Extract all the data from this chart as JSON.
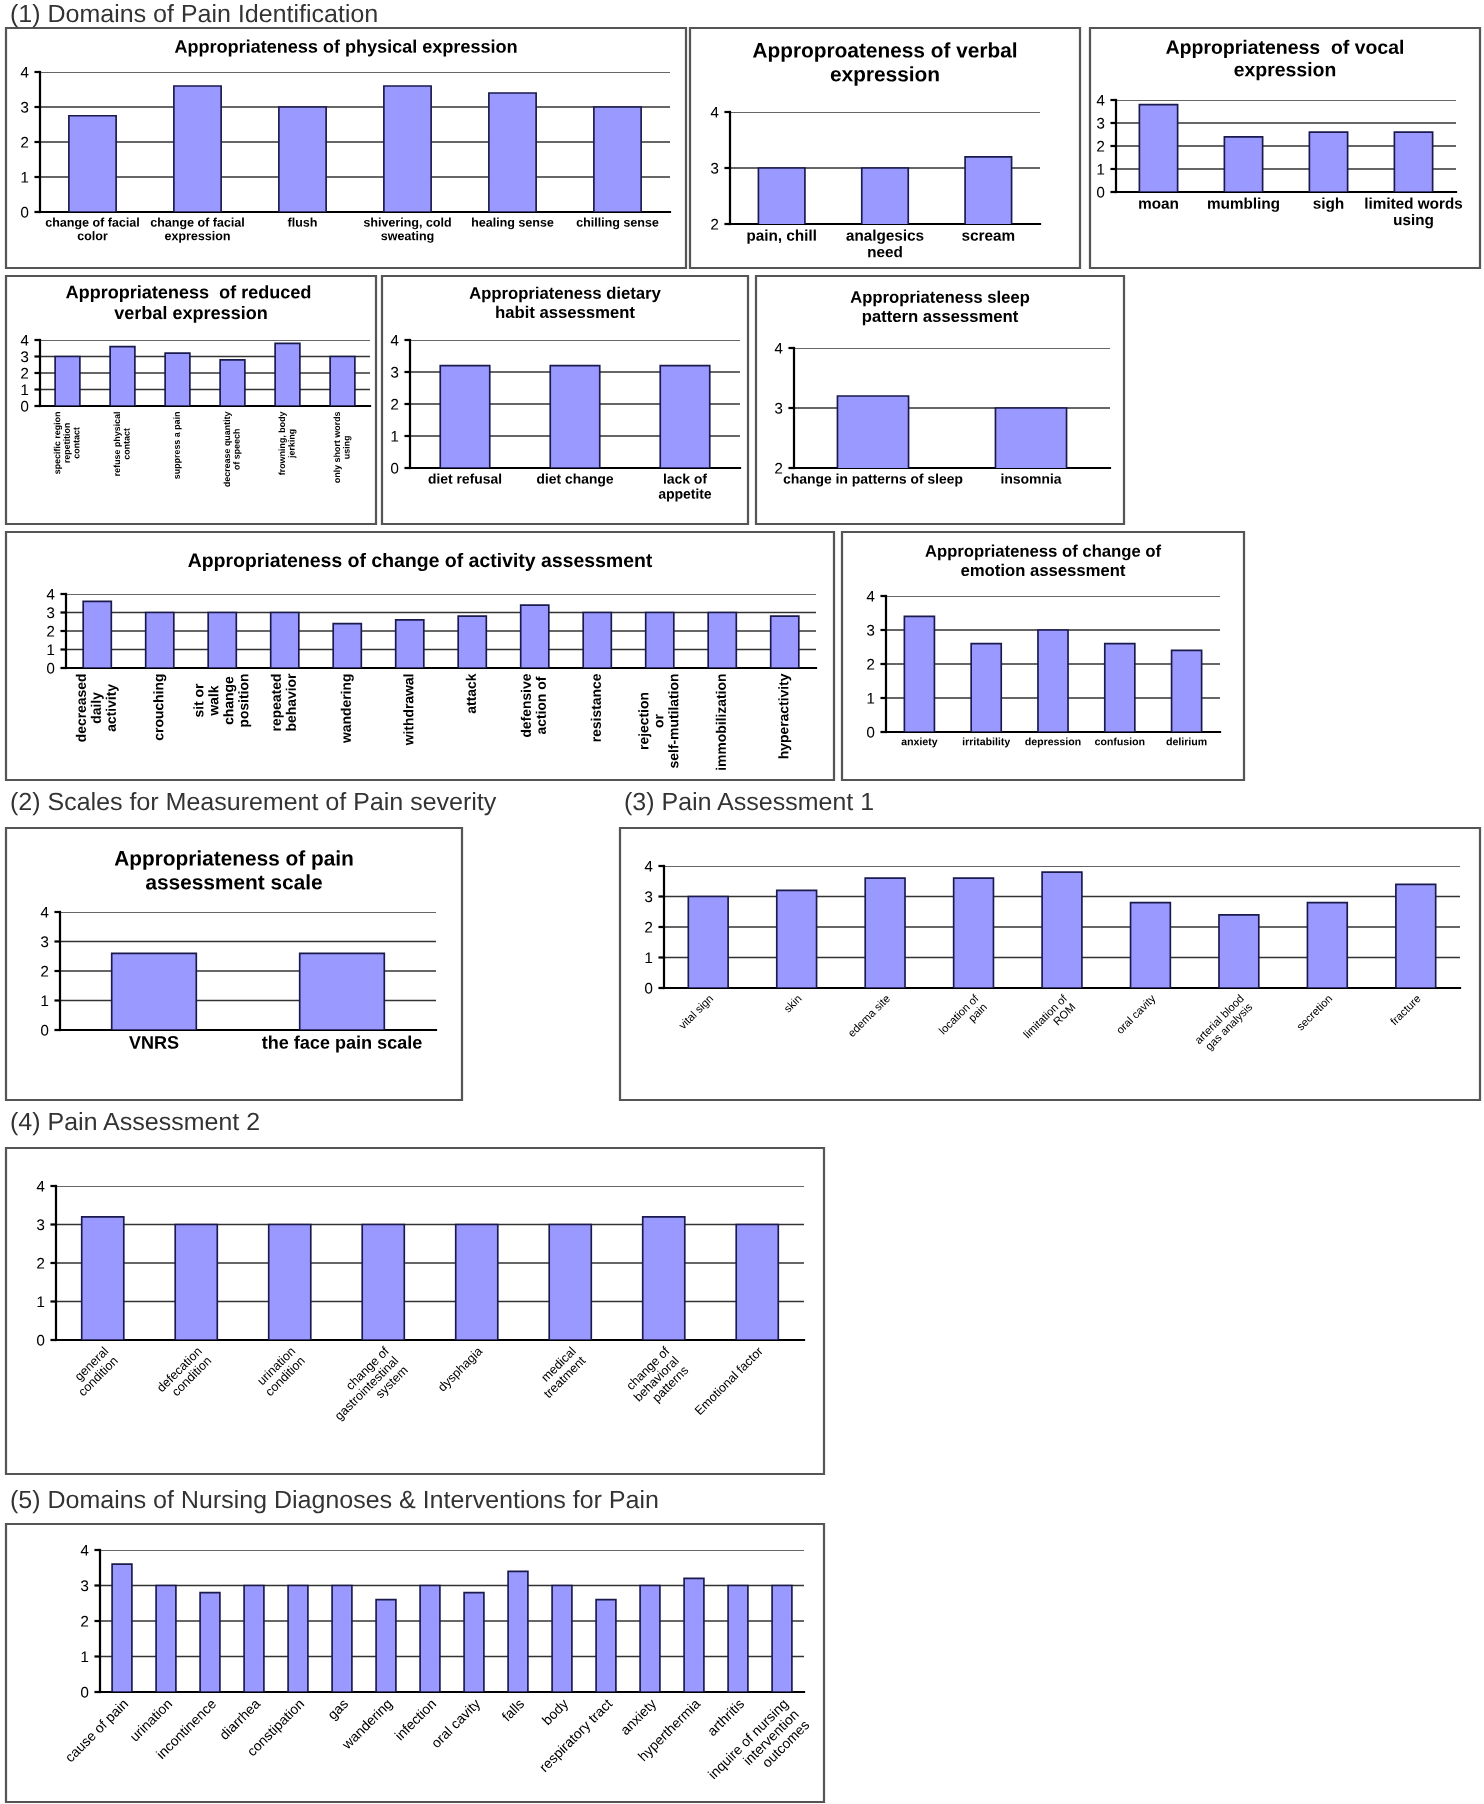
{
  "chart_data": [
    {
      "type": "bar",
      "title": "Appropriateness of physical expression",
      "annotations": [
        "(1) Domains of Pain Identification"
      ],
      "categories": [
        "change of facial color",
        "change of facial expression",
        "flush",
        "shivering, cold sweating",
        "healing sense",
        "chilling sense"
      ],
      "values": [
        2.75,
        3.6,
        3.0,
        3.6,
        3.4,
        3.0
      ],
      "color": "#9999ff",
      "ylim": [
        0,
        4
      ],
      "yticks": [
        0,
        1,
        2,
        3,
        4
      ],
      "grid": "y"
    },
    {
      "type": "bar",
      "title": "Approproateness of verbal expression",
      "categories": [
        "pain, chill",
        "analgesics need",
        "scream"
      ],
      "values": [
        3.0,
        3.0,
        3.2
      ],
      "color": "#9999ff",
      "ylim": [
        2,
        4
      ],
      "yticks": [
        2,
        3,
        4
      ],
      "grid": "y"
    },
    {
      "type": "bar",
      "title": "Appropriateness  of vocal expression",
      "categories": [
        "moan",
        "mumbling",
        "sigh",
        "limited words using"
      ],
      "values": [
        3.8,
        2.4,
        2.6,
        2.6
      ],
      "color": "#9999ff",
      "ylim": [
        0,
        4
      ],
      "yticks": [
        0,
        1,
        2,
        3,
        4
      ],
      "grid": "y"
    },
    {
      "type": "bar",
      "title": "Appropriateness  of reduced  verbal expression",
      "categories": [
        "specific region repetition contact",
        "refuse physical contact",
        "suppress a pain",
        "decrease quantity of speech",
        "frowning, body jerking",
        "only short words using"
      ],
      "values": [
        3.0,
        3.6,
        3.2,
        2.8,
        3.8,
        3.0
      ],
      "color": "#9999ff",
      "ylim": [
        0,
        4
      ],
      "yticks": [
        0,
        1,
        2,
        3,
        4
      ],
      "grid": "y"
    },
    {
      "type": "bar",
      "title": "Appropriateness dietary habit assessment",
      "categories": [
        "diet refusal",
        "diet change",
        "lack of appetite"
      ],
      "values": [
        3.2,
        3.2,
        3.2
      ],
      "color": "#9999ff",
      "ylim": [
        0,
        4
      ],
      "yticks": [
        0,
        1,
        2,
        3,
        4
      ],
      "grid": "y"
    },
    {
      "type": "bar",
      "title": "Appropriateness sleep pattern assessment",
      "categories": [
        "change in patterns of sleep",
        "insomnia"
      ],
      "values": [
        3.2,
        3.0
      ],
      "color": "#9999ff",
      "ylim": [
        2,
        4
      ],
      "yticks": [
        2,
        3,
        4
      ],
      "grid": "y"
    },
    {
      "type": "bar",
      "title": "Appropriateness of change of activity assessment",
      "categories": [
        "decreased daily activity",
        "crouching",
        "sit or walk change position",
        "repeated behavior",
        "wandering",
        "withdrawal",
        "attack",
        "defensive action of",
        "resistance",
        "rejection or self-mutilation",
        "immobilization",
        "hyperactivity"
      ],
      "values": [
        3.6,
        3.0,
        3.0,
        3.0,
        2.4,
        2.6,
        2.8,
        3.4,
        3.0,
        3.0,
        3.0,
        2.8
      ],
      "color": "#9999ff",
      "ylim": [
        0,
        4
      ],
      "yticks": [
        0,
        1,
        2,
        3,
        4
      ],
      "grid": "y"
    },
    {
      "type": "bar",
      "title": "Appropriateness of change of emotion assessment",
      "categories": [
        "anxiety",
        "irritability",
        "depression",
        "confusion",
        "delirium"
      ],
      "values": [
        3.4,
        2.6,
        3.0,
        2.6,
        2.4
      ],
      "color": "#9999ff",
      "ylim": [
        0,
        4
      ],
      "yticks": [
        0,
        1,
        2,
        3,
        4
      ],
      "grid": "y"
    },
    {
      "type": "bar",
      "title": "Appropriateness of pain assessment scale",
      "annotations": [
        "(2) Scales for Measurement of Pain severity"
      ],
      "categories": [
        "VNRS",
        "the face pain scale"
      ],
      "values": [
        2.6,
        2.6
      ],
      "color": "#9999ff",
      "ylim": [
        0,
        4
      ],
      "yticks": [
        0,
        1,
        2,
        3,
        4
      ],
      "grid": "y"
    },
    {
      "type": "bar",
      "annotations": [
        "(3) Pain Assessment 1"
      ],
      "categories": [
        "vital sign",
        "skin",
        "edema site",
        "location of pain",
        "limitation of ROM",
        "oral cavity",
        "arterial blood gas analysis",
        "secretion",
        "fracture"
      ],
      "values": [
        3.0,
        3.2,
        3.6,
        3.6,
        3.8,
        2.8,
        2.4,
        2.8,
        3.4
      ],
      "color": "#9999ff",
      "ylim": [
        0,
        4
      ],
      "yticks": [
        0,
        1,
        2,
        3,
        4
      ],
      "grid": "y"
    },
    {
      "type": "bar",
      "annotations": [
        "(4) Pain Assessment 2"
      ],
      "categories": [
        "general condition",
        "defecation condition",
        "urination condition",
        "change of gastrointestinal system",
        "dysphagia",
        "medical treatment",
        "change of behavioral patterns",
        "Emotional factor"
      ],
      "values": [
        3.2,
        3.0,
        3.0,
        3.0,
        3.0,
        3.0,
        3.2,
        3.0
      ],
      "color": "#9999ff",
      "ylim": [
        0,
        4
      ],
      "yticks": [
        0,
        1,
        2,
        3,
        4
      ],
      "grid": "y"
    },
    {
      "type": "bar",
      "annotations": [
        "(5) Domains of Nursing Diagnoses & Interventions for Pain"
      ],
      "categories": [
        "cause of pain",
        "urination",
        "incontinence",
        "diarrhea",
        "constipation",
        "gas",
        "wandering",
        "infection",
        "oral cavity",
        "falls",
        "body",
        "respiratory tract",
        "anxiety",
        "hyperthermia",
        "arthritis",
        "inquire of nursing intervention outcomes"
      ],
      "values": [
        3.6,
        3.0,
        2.8,
        3.0,
        3.0,
        3.0,
        2.6,
        3.0,
        2.8,
        3.4,
        3.0,
        2.6,
        3.0,
        3.2,
        3.0,
        3.0
      ],
      "color": "#9999ff",
      "ylim": [
        0,
        4
      ],
      "yticks": [
        0,
        1,
        2,
        3,
        4
      ],
      "grid": "y"
    }
  ]
}
